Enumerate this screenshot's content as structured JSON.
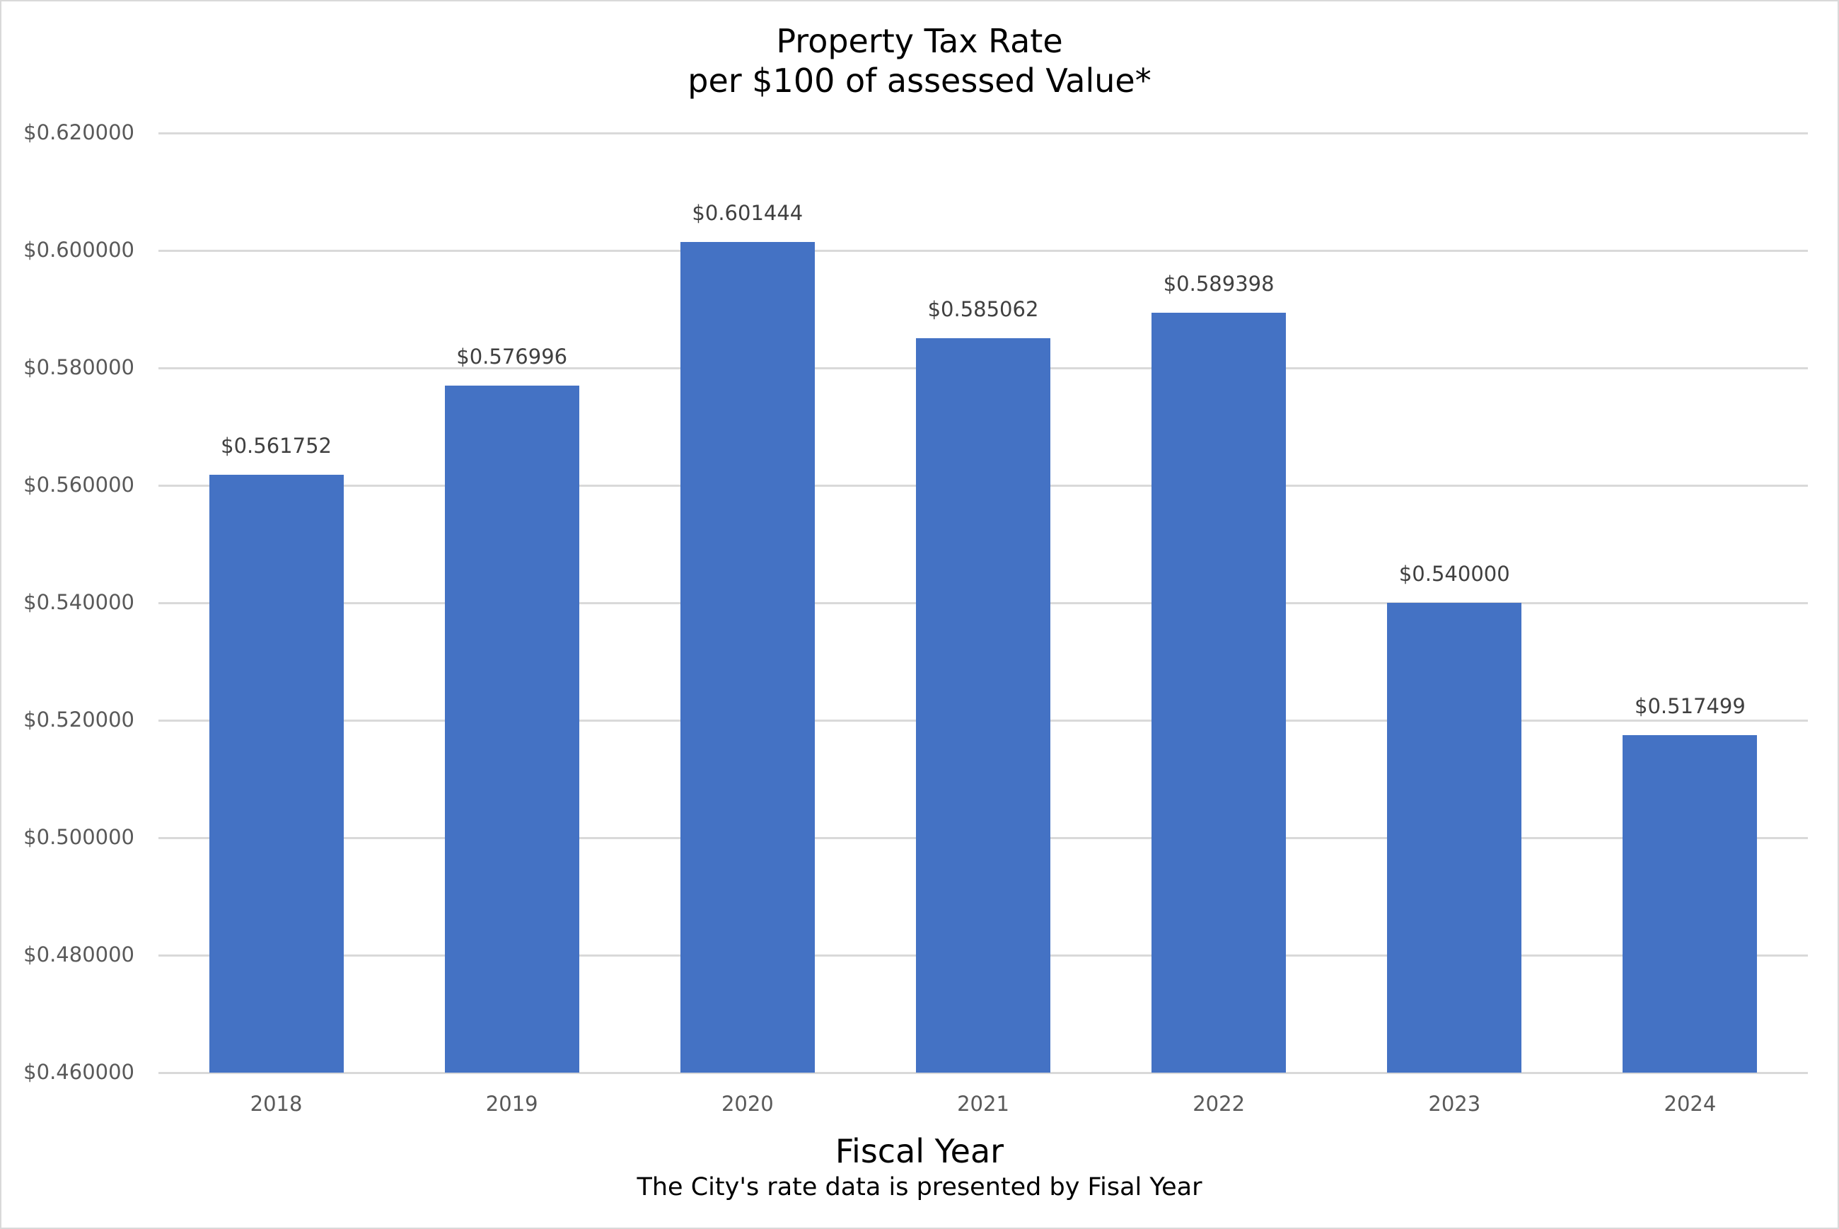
{
  "chart": {
    "title_line1": "Property Tax Rate",
    "title_line2": "per $100 of assessed Value*",
    "x_axis_title": "Fiscal Year",
    "subtitle": "The City's rate data is presented by Fisal Year",
    "bar_color": "#4472c4",
    "gridline_color": "#d9d9d9",
    "y_ticks": [
      "$0.460000",
      "$0.480000",
      "$0.500000",
      "$0.520000",
      "$0.540000",
      "$0.560000",
      "$0.580000",
      "$0.600000",
      "$0.620000"
    ],
    "bars": [
      {
        "year": "2018",
        "label": "$0.561752"
      },
      {
        "year": "2019",
        "label": "$0.576996"
      },
      {
        "year": "2020",
        "label": "$0.601444"
      },
      {
        "year": "2021",
        "label": "$0.585062"
      },
      {
        "year": "2022",
        "label": "$0.589398"
      },
      {
        "year": "2023",
        "label": "$0.540000"
      },
      {
        "year": "2024",
        "label": "$0.517499"
      }
    ]
  },
  "chart_data": {
    "type": "bar",
    "title": "Property Tax Rate per $100 of assessed Value*",
    "subtitle": "The City's rate data is presented by Fisal Year",
    "xlabel": "Fiscal Year",
    "ylabel": "",
    "categories": [
      "2018",
      "2019",
      "2020",
      "2021",
      "2022",
      "2023",
      "2024"
    ],
    "values": [
      0.561752,
      0.576996,
      0.601444,
      0.585062,
      0.589398,
      0.54,
      0.517499
    ],
    "data_labels": [
      "$0.561752",
      "$0.576996",
      "$0.601444",
      "$0.585062",
      "$0.589398",
      "$0.540000",
      "$0.517499"
    ],
    "ylim": [
      0.46,
      0.62
    ],
    "y_tick_step": 0.02,
    "y_tick_format": "$0.000000",
    "grid": true,
    "legend": "none",
    "series_color": "#4472c4"
  }
}
